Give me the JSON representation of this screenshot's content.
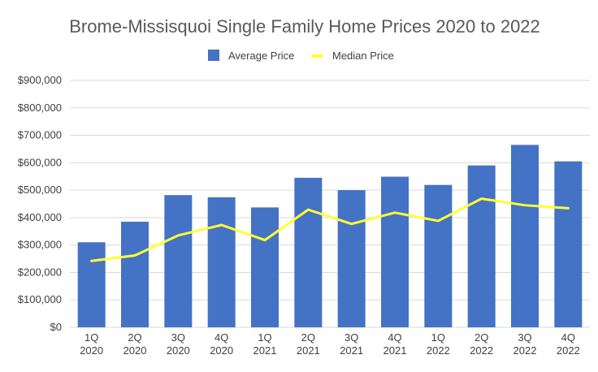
{
  "chart_data": {
    "type": "bar",
    "title": "Brome-Missisquoi Single Family Home Prices 2020 to 2022",
    "categories": [
      [
        "1Q",
        "2020"
      ],
      [
        "2Q",
        "2020"
      ],
      [
        "3Q",
        "2020"
      ],
      [
        "4Q",
        "2020"
      ],
      [
        "1Q",
        "2021"
      ],
      [
        "2Q",
        "2021"
      ],
      [
        "3Q",
        "2021"
      ],
      [
        "4Q",
        "2021"
      ],
      [
        "1Q",
        "2022"
      ],
      [
        "2Q",
        "2022"
      ],
      [
        "3Q",
        "2022"
      ],
      [
        "4Q",
        "2022"
      ]
    ],
    "series": [
      {
        "name": "Average Price",
        "type": "bar",
        "color": "#4472C4",
        "values": [
          310000,
          385000,
          482000,
          474000,
          437000,
          545000,
          500000,
          549000,
          519000,
          590000,
          665000,
          605000
        ]
      },
      {
        "name": "Median Price",
        "type": "line",
        "color": "#FFFF33",
        "values": [
          242000,
          262000,
          335000,
          373000,
          318000,
          429000,
          377000,
          418000,
          388000,
          469000,
          445000,
          434000
        ]
      }
    ],
    "ylim": [
      0,
      900000
    ],
    "y_ticks": [
      "$0",
      "$100,000",
      "$200,000",
      "$300,000",
      "$400,000",
      "$500,000",
      "$600,000",
      "$700,000",
      "$800,000",
      "$900,000"
    ],
    "y_step": 100000,
    "grid": true,
    "legend_position": "top-center"
  }
}
